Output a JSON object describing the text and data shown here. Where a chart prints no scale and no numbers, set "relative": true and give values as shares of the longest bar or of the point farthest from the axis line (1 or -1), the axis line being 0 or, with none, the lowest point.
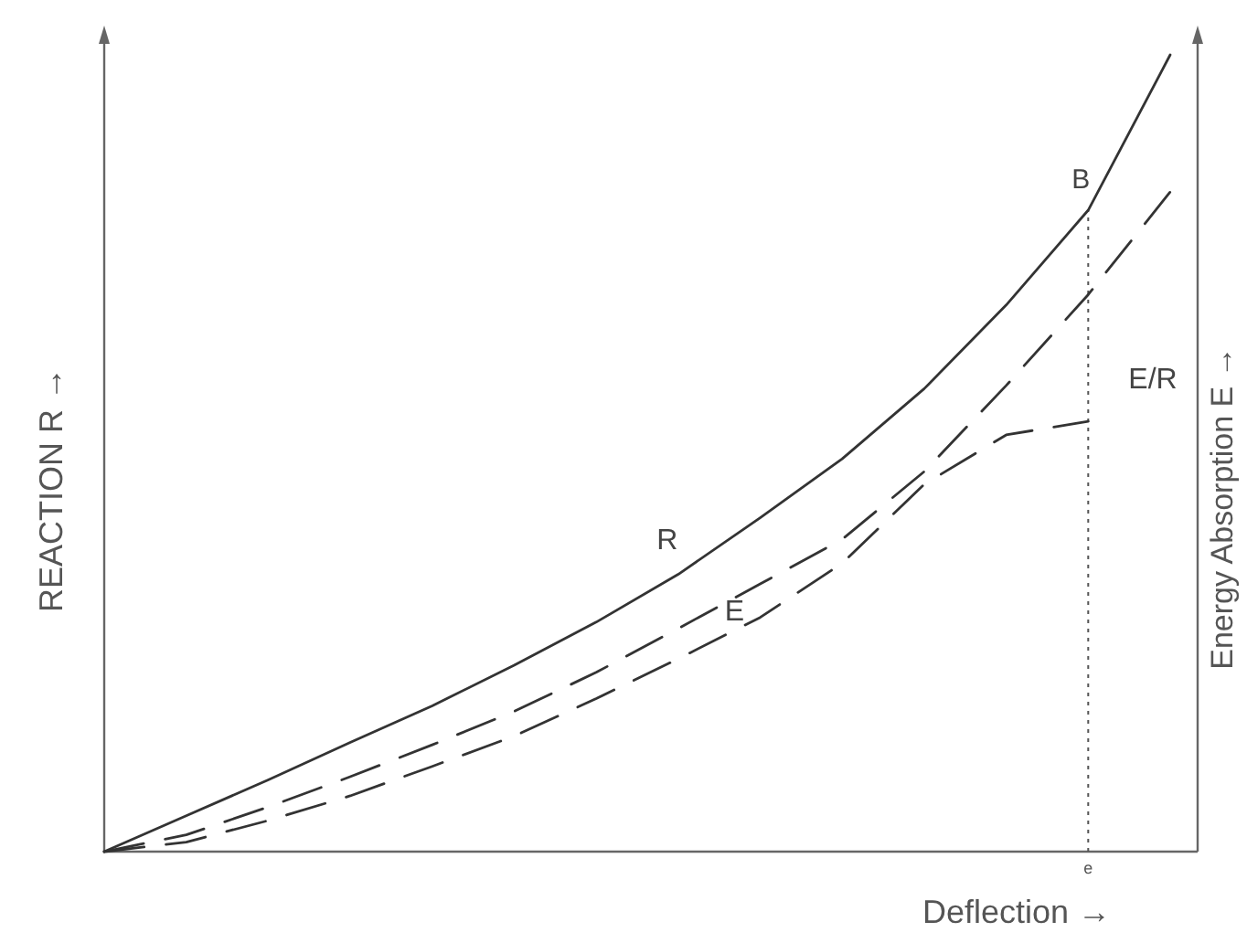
{
  "chart_data": {
    "type": "line",
    "relative": true,
    "xlabel": "Deflection →",
    "ylabel": "REACTION R →",
    "y2label": "Energy Absorption E →",
    "categories": [
      null,
      null,
      null,
      null,
      null,
      null,
      null,
      null,
      null,
      null,
      null,
      null,
      null,
      null
    ],
    "series": [
      {
        "name": "R",
        "color": "#333333",
        "line_style": "solid",
        "values": [
          0,
          0.045,
          0.09,
          0.137,
          0.183,
          0.234,
          0.288,
          0.348,
          0.419,
          0.493,
          0.581,
          0.686,
          0.805,
          1.0
        ]
      },
      {
        "name": "E",
        "color": "#333333",
        "line_style": "dashed",
        "values": [
          0,
          0.021,
          0.056,
          0.094,
          0.134,
          0.176,
          0.225,
          0.28,
          0.336,
          0.392,
          0.477,
          0.585,
          0.699,
          0.828
        ]
      },
      {
        "name": "E/R",
        "color": "#333333",
        "line_style": "dashed",
        "values": [
          0,
          0.012,
          0.039,
          0.07,
          0.107,
          0.145,
          0.192,
          0.242,
          0.294,
          0.362,
          0.461,
          0.523,
          0.54,
          null
        ]
      }
    ],
    "annotations": [
      "B",
      "e"
    ]
  }
}
